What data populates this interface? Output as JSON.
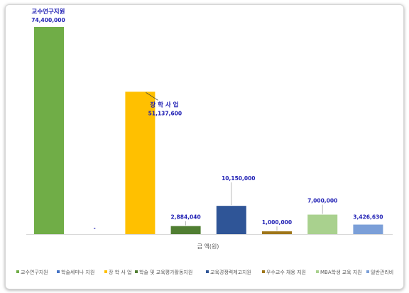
{
  "chart_data": {
    "type": "bar",
    "xlabel": "금 액(원)",
    "ylim": [
      0,
      80000000
    ],
    "grid": false,
    "legend_placement": "bottom",
    "categories": [
      "교수연구지원",
      "학술세미나 지원",
      "장 학 사 업",
      "학술 및 교육평가활동지원",
      "교육경쟁력제고지원",
      "우수교수 채용 지원",
      "MBA학생 교육 지원",
      "일반관리비"
    ],
    "values": [
      74400000,
      0,
      51137600,
      2884040,
      10150000,
      1000000,
      7000000,
      3426630
    ],
    "labels": [
      "74,400,000",
      "-",
      "51,137,600",
      "2,884,040",
      "10,150,000",
      "1,000,000",
      "7,000,000",
      "3,426,630"
    ],
    "callouts": [
      {
        "index": 0,
        "category": "교수연구지원",
        "value": "74,400,000"
      },
      {
        "index": 2,
        "category": "장 학 사 업",
        "value": "51,137,600"
      }
    ],
    "colors": [
      "#70ad47",
      "#4472c4",
      "#ffc000",
      "#507e32",
      "#2f5597",
      "#9e7518",
      "#a9d18e",
      "#7b9fd8"
    ],
    "label_color": "#1f1fb4"
  }
}
